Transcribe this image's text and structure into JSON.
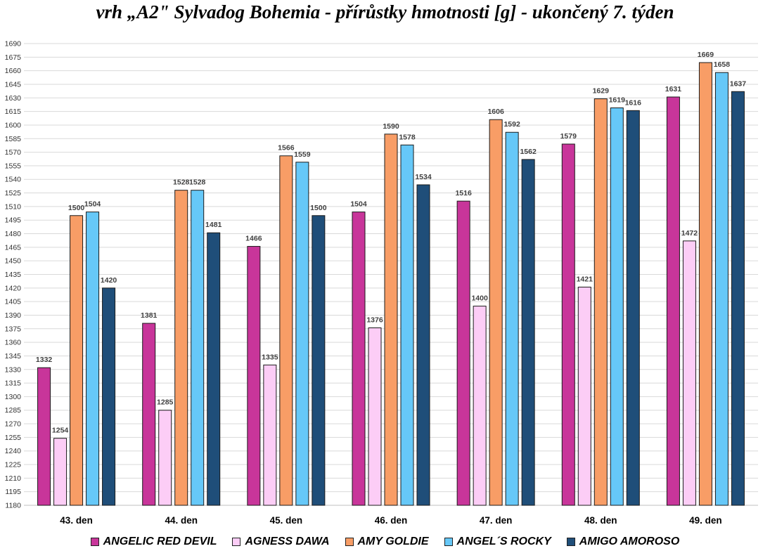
{
  "chart_data": {
    "type": "bar",
    "title": "vrh „A2\" Sylvadog Bohemia - přírůstky hmotnosti [g] - ukončený 7. týden",
    "xlabel": "",
    "ylabel": "",
    "ylim": [
      1180,
      1690
    ],
    "ytick_step": 15,
    "grid": true,
    "legend_position": "bottom",
    "categories": [
      "43. den",
      "44. den",
      "45. den",
      "46. den",
      "47. den",
      "48. den",
      "49. den"
    ],
    "series": [
      {
        "name": "ANGELIC RED DEVIL",
        "color": "#c8359a",
        "values": [
          1332,
          1381,
          1466,
          1504,
          1516,
          1579,
          1631
        ]
      },
      {
        "name": "AGNESS DAWA",
        "color": "#fccdf6",
        "values": [
          1254,
          1285,
          1335,
          1376,
          1400,
          1421,
          1472
        ]
      },
      {
        "name": "AMY GOLDIE",
        "color": "#f89d66",
        "values": [
          1500,
          1528,
          1566,
          1590,
          1606,
          1629,
          1669
        ]
      },
      {
        "name": "ANGEL´S ROCKY",
        "color": "#66c8f8",
        "values": [
          1504,
          1528,
          1559,
          1578,
          1592,
          1619,
          1658
        ]
      },
      {
        "name": "AMIGO AMOROSO",
        "color": "#1f4e79",
        "values": [
          1420,
          1481,
          1500,
          1534,
          1562,
          1616,
          1637
        ]
      }
    ]
  }
}
